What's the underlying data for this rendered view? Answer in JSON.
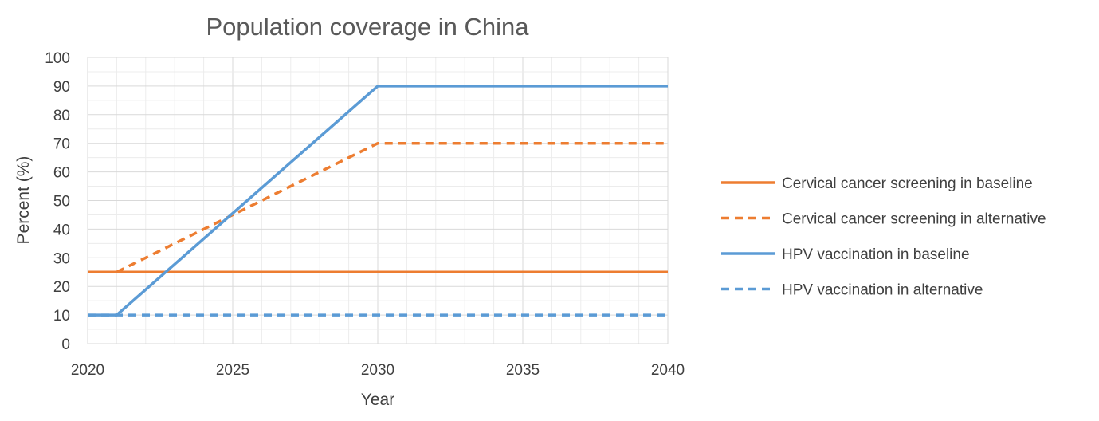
{
  "chart_data": {
    "type": "line",
    "title": "Population coverage in China",
    "xlabel": "Year",
    "ylabel": "Percent (%)",
    "xlim": [
      2020,
      2040
    ],
    "ylim": [
      0,
      100
    ],
    "x_ticks": [
      2020,
      2025,
      2030,
      2035,
      2040
    ],
    "y_ticks": [
      0,
      10,
      20,
      30,
      40,
      50,
      60,
      70,
      80,
      90,
      100
    ],
    "grid": "major and minor",
    "legend_position": "right",
    "series": [
      {
        "name": "Cervical cancer screening in baseline",
        "color": "#ED7D31",
        "style": "solid",
        "points": [
          [
            2020,
            25
          ],
          [
            2040,
            25
          ]
        ]
      },
      {
        "name": "Cervical cancer screening in alternative",
        "color": "#ED7D31",
        "style": "dashed",
        "points": [
          [
            2021,
            25
          ],
          [
            2030,
            70
          ],
          [
            2040,
            70
          ]
        ]
      },
      {
        "name": "HPV vaccination in baseline",
        "color": "#5B9BD5",
        "style": "solid",
        "points": [
          [
            2020,
            10
          ],
          [
            2021,
            10
          ],
          [
            2030,
            90
          ],
          [
            2040,
            90
          ]
        ]
      },
      {
        "name": "HPV vaccination in alternative",
        "color": "#5B9BD5",
        "style": "dashed",
        "points": [
          [
            2020,
            10
          ],
          [
            2040,
            10
          ]
        ]
      }
    ]
  }
}
